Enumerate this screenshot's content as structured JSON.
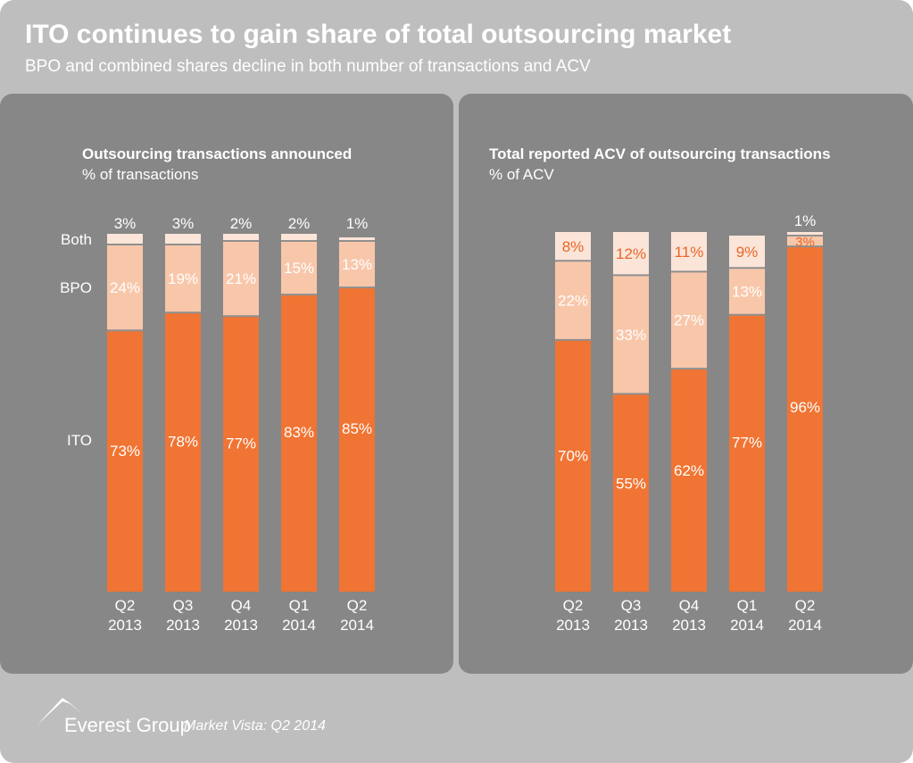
{
  "header": {
    "title": "ITO continues to gain share of total outsourcing market",
    "subtitle": "BPO and combined shares decline in both number of transactions and ACV"
  },
  "colors": {
    "ito": "#f07433",
    "bpo": "#f8c7aa",
    "both": "#fbe5d8",
    "panel": "#878787",
    "background": "#bebebe",
    "text_light": "#ffffff",
    "text_orange": "#e8662a"
  },
  "footer": {
    "brand": "Everest Group",
    "tagline": "Market Vista: Q2 2014",
    "logo_icon": "everest-peak-icon"
  },
  "chart_data": [
    {
      "type": "bar",
      "stacked": true,
      "title": "Outsourcing transactions announced",
      "subtitle": "% of transactions",
      "categories": [
        [
          "Q2",
          "2013"
        ],
        [
          "Q3",
          "2013"
        ],
        [
          "Q4",
          "2013"
        ],
        [
          "Q1",
          "2014"
        ],
        [
          "Q2",
          "2014"
        ]
      ],
      "series": [
        {
          "name": "ITO",
          "key": "ito",
          "values": [
            73,
            78,
            77,
            83,
            85
          ]
        },
        {
          "name": "BPO",
          "key": "bpo",
          "values": [
            24,
            19,
            21,
            15,
            13
          ]
        },
        {
          "name": "Both",
          "key": "both",
          "values": [
            3,
            3,
            2,
            2,
            1
          ]
        }
      ],
      "ylim": [
        0,
        100
      ],
      "legend": "left"
    },
    {
      "type": "bar",
      "stacked": true,
      "title": "Total reported ACV of outsourcing transactions",
      "subtitle": "% of ACV",
      "categories": [
        [
          "Q2",
          "2013"
        ],
        [
          "Q3",
          "2013"
        ],
        [
          "Q4",
          "2013"
        ],
        [
          "Q1",
          "2014"
        ],
        [
          "Q2",
          "2014"
        ]
      ],
      "series": [
        {
          "name": "ITO",
          "key": "ito",
          "values": [
            70,
            55,
            62,
            77,
            96
          ]
        },
        {
          "name": "BPO",
          "key": "bpo",
          "values": [
            22,
            33,
            27,
            13,
            3
          ]
        },
        {
          "name": "Both",
          "key": "both",
          "values": [
            8,
            12,
            11,
            9,
            1
          ]
        }
      ],
      "ylim": [
        0,
        100
      ],
      "legend": "none"
    }
  ]
}
